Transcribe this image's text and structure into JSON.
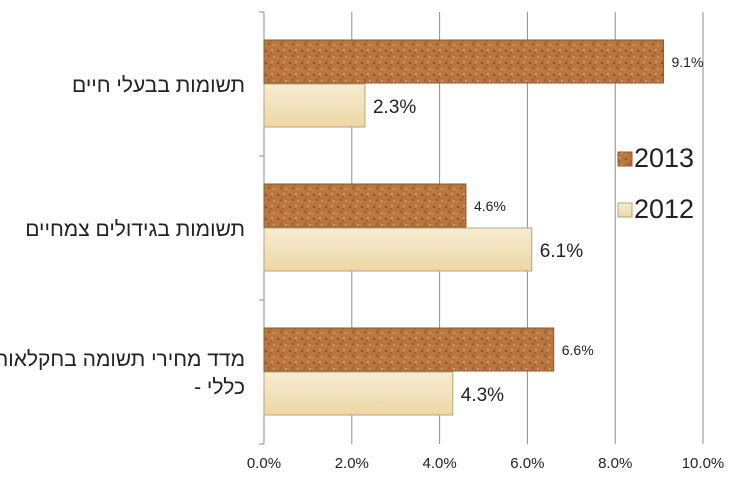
{
  "chart_data": {
    "type": "bar",
    "orientation": "horizontal",
    "categories": [
      [
        "תשומות בבעלי חיים"
      ],
      [
        "תשומות בגידולים צמחיים"
      ],
      [
        "מדד מחירי תשומה בחקלאות",
        "- כללי"
      ]
    ],
    "series": [
      {
        "name": "2013",
        "values": [
          9.1,
          4.6,
          6.6
        ],
        "labels": [
          "9.1%",
          "4.6%",
          "6.6%"
        ],
        "color": "#b9773f"
      },
      {
        "name": "2012",
        "values": [
          2.3,
          6.1,
          4.3
        ],
        "labels": [
          "2.3%",
          "6.1%",
          "4.3%"
        ],
        "color": "#f3e3bd"
      }
    ],
    "x_ticks": [
      "0.0%",
      "2.0%",
      "4.0%",
      "6.0%",
      "8.0%",
      "10.0%"
    ],
    "xlim": [
      0,
      10
    ],
    "grid": true,
    "legend": "right"
  }
}
